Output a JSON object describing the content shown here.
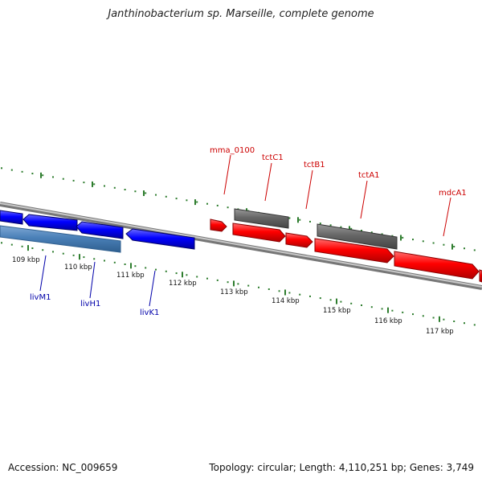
{
  "title": "Janthinobacterium sp. Marseille, complete genome",
  "accession_text": "Accession: NC_009659",
  "topology_text": "Topology: circular; Length: 4,110,251 bp; Genes: 3,749",
  "tick_labels": [
    "109 kbp",
    "110 kbp",
    "111 kbp",
    "112 kbp",
    "113 kbp",
    "114 kbp",
    "115 kbp",
    "116 kbp",
    "117 kbp"
  ],
  "genes_bottom": [
    {
      "name": "livM1"
    },
    {
      "name": "livH1"
    },
    {
      "name": "livK1"
    }
  ],
  "genes_top": [
    {
      "name": "mma_0100"
    },
    {
      "name": "tctC1"
    },
    {
      "name": "tctB1"
    },
    {
      "name": "tctA1"
    },
    {
      "name": "mdcA1"
    }
  ],
  "colors": {
    "forward_gene": "#ff0000",
    "reverse_gene": "#0000ff",
    "operon_gray": "#666666",
    "light_blue": "#4a80b8",
    "backbone": "#888888",
    "ticks": "#2e7d2e",
    "label_red": "#cc0000",
    "label_blue": "#0000aa"
  }
}
